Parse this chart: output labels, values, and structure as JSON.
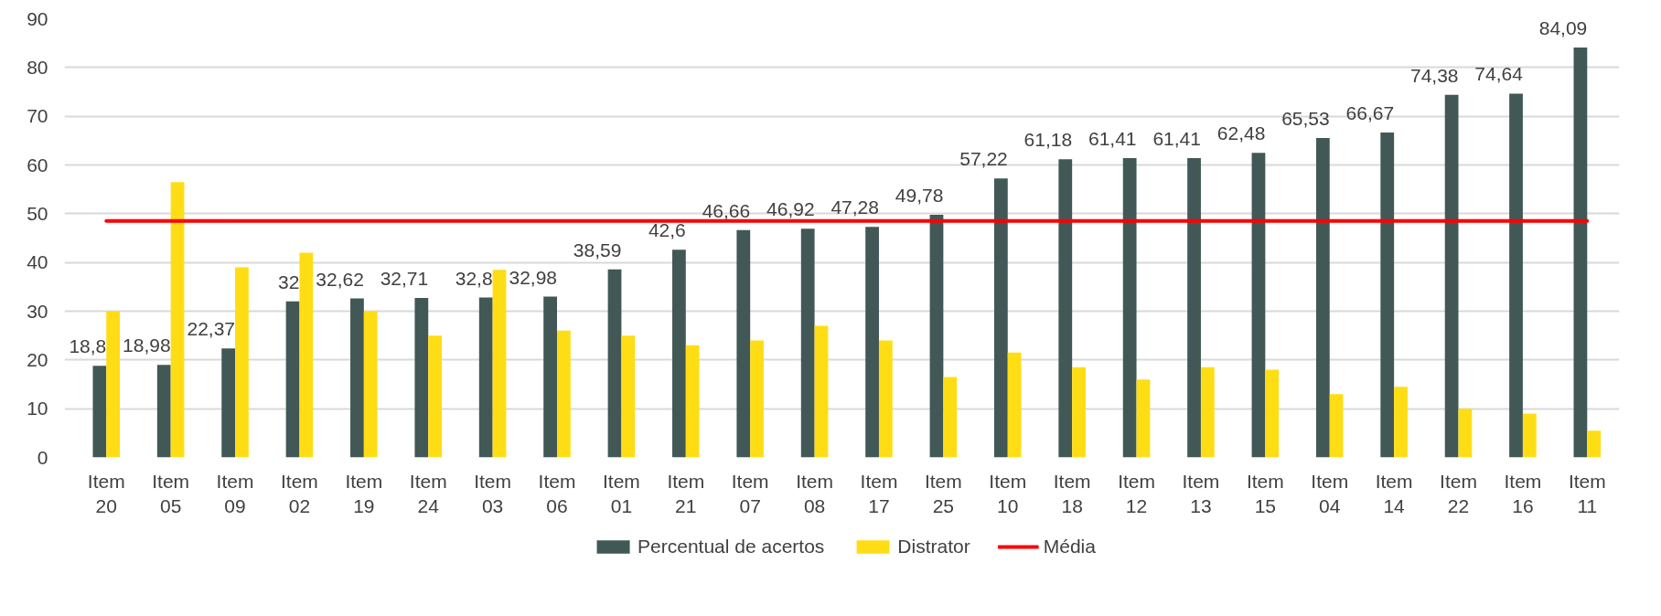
{
  "chart_data": {
    "type": "bar",
    "categories": [
      "Item 20",
      "Item 05",
      "Item 09",
      "Item 02",
      "Item 19",
      "Item 24",
      "Item 03",
      "Item 06",
      "Item 01",
      "Item 21",
      "Item 07",
      "Item 08",
      "Item 17",
      "Item 25",
      "Item 10",
      "Item 18",
      "Item 12",
      "Item 13",
      "Item 15",
      "Item 04",
      "Item 14",
      "Item 22",
      "Item 16",
      "Item 11"
    ],
    "series": [
      {
        "name": "Percentual de acertos",
        "color": "#415856",
        "values": [
          18.8,
          18.98,
          22.37,
          32,
          32.62,
          32.71,
          32.8,
          32.98,
          38.59,
          42.6,
          46.66,
          46.92,
          47.28,
          49.78,
          57.22,
          61.18,
          61.41,
          61.41,
          62.48,
          65.53,
          66.67,
          74.38,
          74.64,
          84.09
        ],
        "value_labels": [
          "18,8",
          "18,98",
          "22,37",
          "32",
          "32,62",
          "32,71",
          "32,8",
          "32,98",
          "38,59",
          "42,6",
          "46,66",
          "46,92",
          "47,28",
          "49,78",
          "57,22",
          "61,18",
          "61,41",
          "61,41",
          "62,48",
          "65,53",
          "66,67",
          "74,38",
          "74,64",
          "84,09"
        ]
      },
      {
        "name": "Distrator",
        "color": "#ffdd15",
        "values": [
          30,
          56.5,
          39,
          42,
          30,
          25,
          38.5,
          26,
          25,
          23,
          24,
          27,
          24,
          16.5,
          21.5,
          18.5,
          16,
          18.5,
          18,
          13,
          14.5,
          10,
          9,
          5.5
        ]
      },
      {
        "name": "Média",
        "type": "line",
        "color": "#ff0000",
        "values": [
          48.5,
          48.5,
          48.5,
          48.5,
          48.5,
          48.5,
          48.5,
          48.5,
          48.5,
          48.5,
          48.5,
          48.5,
          48.5,
          48.5,
          48.5,
          48.5,
          48.5,
          48.5,
          48.5,
          48.5,
          48.5,
          48.5,
          48.5,
          48.5
        ]
      }
    ],
    "ylim": [
      0,
      90
    ],
    "yticks": [
      0,
      10,
      20,
      30,
      40,
      50,
      60,
      70,
      80,
      90
    ],
    "grid": "y",
    "legend": "bottom"
  }
}
